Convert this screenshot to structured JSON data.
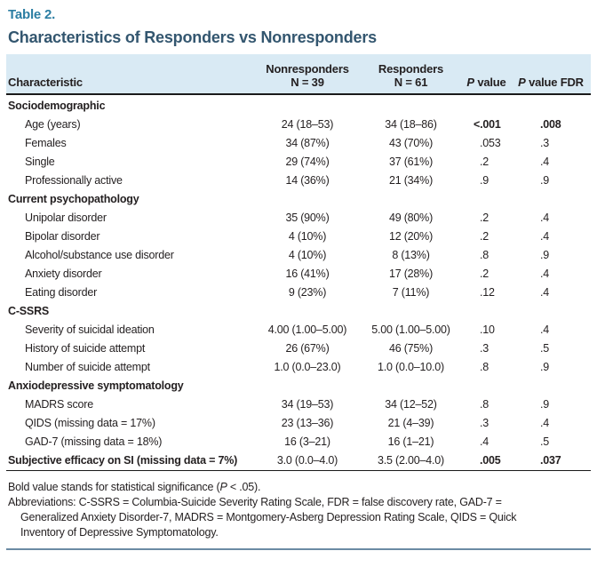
{
  "caption": {
    "label": "Table 2.",
    "title": "Characteristics of Responders vs Nonresponders"
  },
  "colors": {
    "caption_label": "#2c7ea3",
    "title": "#33566f",
    "header_band": "#d9eaf4",
    "header_rule": "#1a1a1a",
    "bottom_rule": "#6b8ba4",
    "text": "#231f20"
  },
  "table": {
    "header": {
      "characteristic": "Characteristic",
      "nonresponders_line1": "Nonresponders",
      "nonresponders_line2": "N = 39",
      "responders_line1": "Responders",
      "responders_line2": "N = 61",
      "p_col": {
        "p": "P",
        "rest": "value"
      },
      "p_fdr_col": {
        "p": "P",
        "rest": "value FDR"
      }
    },
    "rows": [
      {
        "type": "section",
        "label": "Sociodemographic"
      },
      {
        "type": "item",
        "label": "Age (years)",
        "nonresponders": "24 (18–53)",
        "responders": "34 (18–86)",
        "p": "<.001",
        "p_fdr": ".008",
        "bold_p": true
      },
      {
        "type": "item",
        "label": "Females",
        "nonresponders": "34 (87%)",
        "responders": "43 (70%)",
        "p": ".053",
        "p_fdr": ".3"
      },
      {
        "type": "item",
        "label": "Single",
        "nonresponders": "29 (74%)",
        "responders": "37 (61%)",
        "p": ".2",
        "p_fdr": ".4"
      },
      {
        "type": "item",
        "label": "Professionally active",
        "nonresponders": "14 (36%)",
        "responders": "21 (34%)",
        "p": ".9",
        "p_fdr": ".9"
      },
      {
        "type": "section",
        "label": "Current psychopathology"
      },
      {
        "type": "item",
        "label": "Unipolar disorder",
        "nonresponders": "35 (90%)",
        "responders": "49 (80%)",
        "p": ".2",
        "p_fdr": ".4"
      },
      {
        "type": "item",
        "label": "Bipolar disorder",
        "nonresponders": "4 (10%)",
        "responders": "12 (20%)",
        "p": ".2",
        "p_fdr": ".4"
      },
      {
        "type": "item",
        "label": "Alcohol/substance use disorder",
        "nonresponders": "4 (10%)",
        "responders": "8 (13%)",
        "p": ".8",
        "p_fdr": ".9"
      },
      {
        "type": "item",
        "label": "Anxiety disorder",
        "nonresponders": "16 (41%)",
        "responders": "17 (28%)",
        "p": ".2",
        "p_fdr": ".4"
      },
      {
        "type": "item",
        "label": "Eating disorder",
        "nonresponders": "9 (23%)",
        "responders": "7 (11%)",
        "p": ".12",
        "p_fdr": ".4"
      },
      {
        "type": "section",
        "label": "C-SSRS"
      },
      {
        "type": "item",
        "label": "Severity of suicidal ideation",
        "nonresponders": "4.00 (1.00–5.00)",
        "responders": "5.00 (1.00–5.00)",
        "p": ".10",
        "p_fdr": ".4"
      },
      {
        "type": "item",
        "label": "History of suicide attempt",
        "nonresponders": "26 (67%)",
        "responders": "46 (75%)",
        "p": ".3",
        "p_fdr": ".5"
      },
      {
        "type": "item",
        "label": "Number of suicide attempt",
        "nonresponders": "1.0 (0.0–23.0)",
        "responders": "1.0 (0.0–10.0)",
        "p": ".8",
        "p_fdr": ".9"
      },
      {
        "type": "section",
        "label": "Anxiodepressive symptomatology"
      },
      {
        "type": "item",
        "label": "MADRS score",
        "nonresponders": "34 (19–53)",
        "responders": "34 (12–52)",
        "p": ".8",
        "p_fdr": ".9"
      },
      {
        "type": "item",
        "label": "QIDS (missing data = 17%)",
        "nonresponders": "23 (13–36)",
        "responders": "21 (4–39)",
        "p": ".3",
        "p_fdr": ".4"
      },
      {
        "type": "item",
        "label": "GAD-7 (missing data = 18%)",
        "nonresponders": "16 (3–21)",
        "responders": "16 (1–21)",
        "p": ".4",
        "p_fdr": ".5"
      },
      {
        "type": "bold-item",
        "label": "Subjective efficacy on SI (missing data = 7%)",
        "nonresponders": "3.0 (0.0–4.0)",
        "responders": "3.5 (2.00–4.0)",
        "p": ".005",
        "p_fdr": ".037",
        "bold_p": true
      }
    ]
  },
  "footnotes": {
    "significance": {
      "pre": "Bold value stands for statistical significance (",
      "p": "P",
      "post": " < .05)."
    },
    "abbreviations_lines": [
      "Abbreviations: C-SSRS = Columbia-Suicide Severity Rating Scale, FDR = false discovery rate, GAD-7 =",
      "Generalized Anxiety Disorder-7, MADRS = Montgomery-Asberg Depression Rating Scale, QIDS = Quick",
      "Inventory of Depressive Symptomatology."
    ]
  }
}
